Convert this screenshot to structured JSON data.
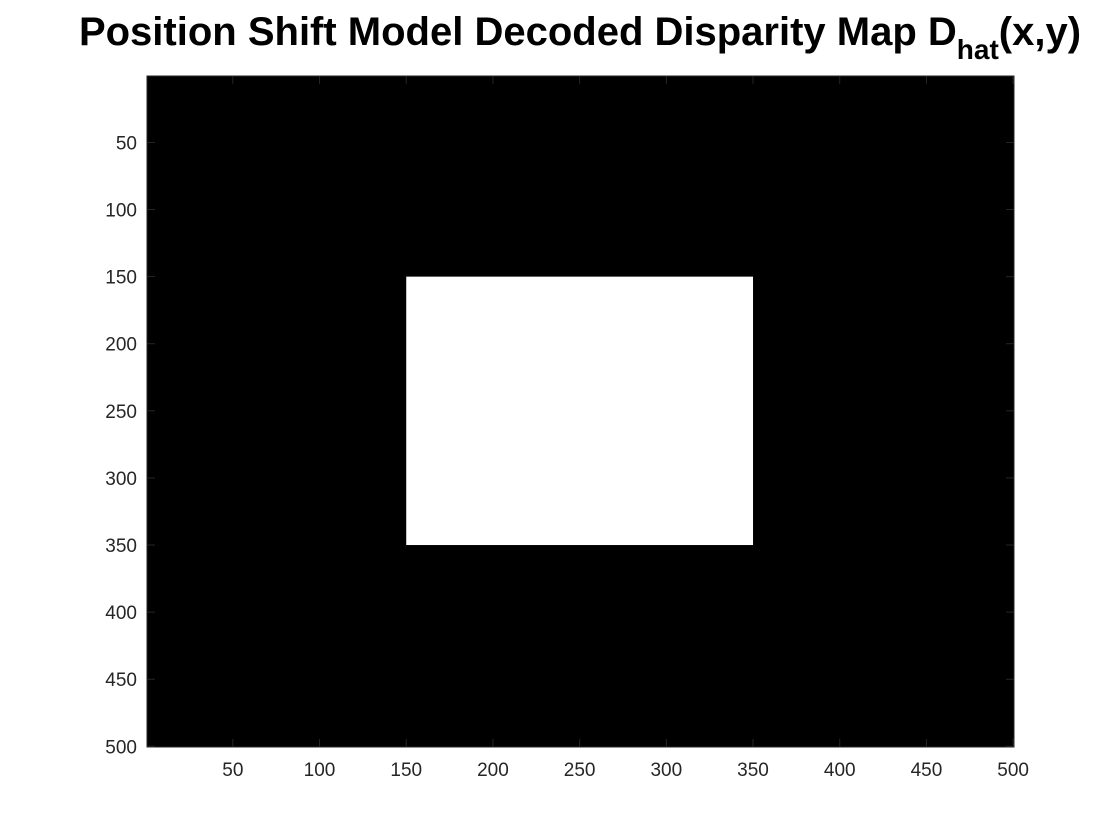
{
  "chart_data": {
    "type": "heatmap",
    "title": {
      "main": "Position Shift Model Decoded Disparity Map D",
      "subscript": "hat",
      "suffix": "(x,y)"
    },
    "xlabel": "",
    "ylabel": "",
    "xlim": [
      0.5,
      500.5
    ],
    "ylim": [
      0.5,
      500.5
    ],
    "y_reversed": true,
    "grid": false,
    "colormap": [
      "#000000",
      "#ffffff"
    ],
    "x_ticks": [
      50,
      100,
      150,
      200,
      250,
      300,
      350,
      400,
      450,
      500
    ],
    "y_ticks": [
      50,
      100,
      150,
      200,
      250,
      300,
      350,
      400,
      450,
      500
    ],
    "background_value": 0,
    "regions": [
      {
        "x": [
          150,
          350
        ],
        "y": [
          150,
          350
        ],
        "value": 1
      }
    ]
  }
}
